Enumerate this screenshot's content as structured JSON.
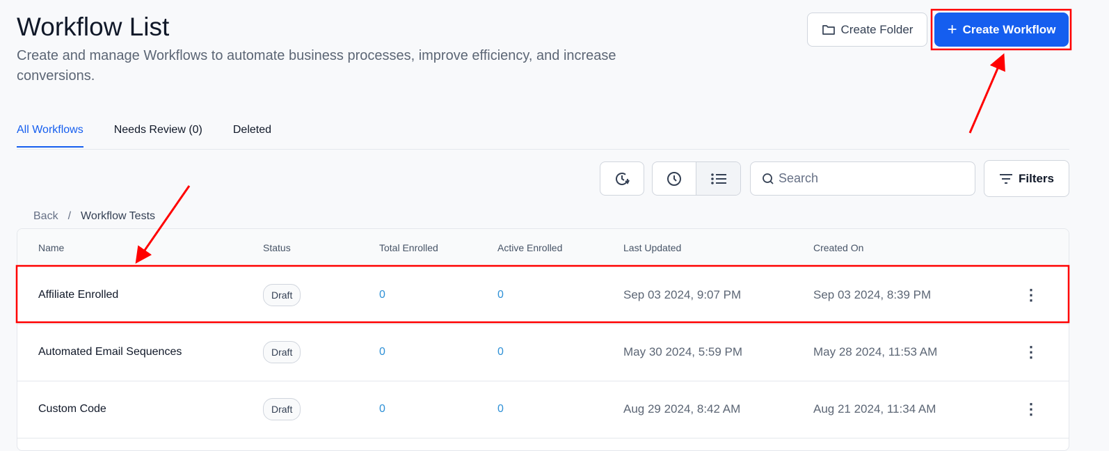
{
  "header": {
    "title": "Workflow List",
    "subtitle": "Create and manage Workflows to automate business processes, improve efficiency, and increase conversions.",
    "create_folder": "Create Folder",
    "create_workflow": "Create Workflow"
  },
  "tabs": [
    {
      "label": "All Workflows",
      "active": true
    },
    {
      "label": "Needs Review (0)"
    },
    {
      "label": "Deleted"
    }
  ],
  "toolbar": {
    "search_placeholder": "Search",
    "filters": "Filters",
    "icons": [
      "clock-refresh-icon",
      "clock-icon",
      "list-icon",
      "search-icon",
      "filter-icon"
    ]
  },
  "breadcrumb": {
    "back": "Back",
    "separator": "/",
    "current": "Workflow Tests"
  },
  "table": {
    "columns": [
      "Name",
      "Status",
      "Total Enrolled",
      "Active Enrolled",
      "Last Updated",
      "Created On"
    ],
    "rows": [
      {
        "name": "Affiliate Enrolled",
        "status": "Draft",
        "total": "0",
        "active": "0",
        "updated": "Sep 03 2024, 9:07 PM",
        "created": "Sep 03 2024, 8:39 PM"
      },
      {
        "name": "Automated Email Sequences",
        "status": "Draft",
        "total": "0",
        "active": "0",
        "updated": "May 30 2024, 5:59 PM",
        "created": "May 28 2024, 11:53 AM"
      },
      {
        "name": "Custom Code",
        "status": "Draft",
        "total": "0",
        "active": "0",
        "updated": "Aug 29 2024, 8:42 AM",
        "created": "Aug 21 2024, 11:34 AM"
      }
    ]
  },
  "colors": {
    "accent": "#155eef",
    "annotation": "#ff0000",
    "link_number": "#2e90d6"
  }
}
